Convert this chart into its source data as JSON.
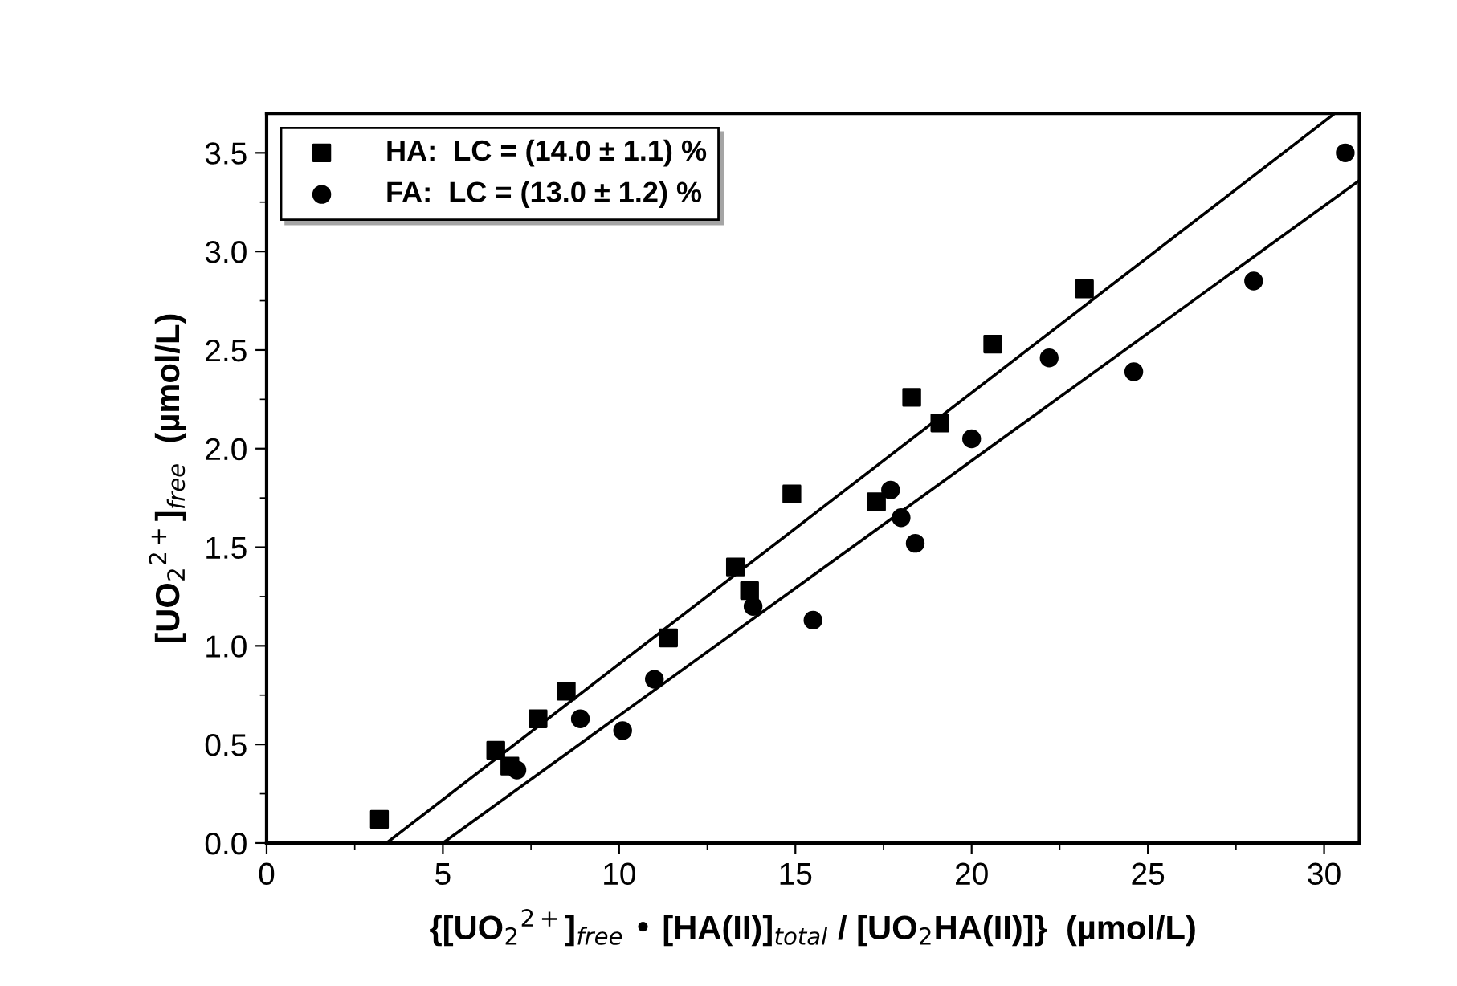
{
  "chart_data": {
    "type": "scatter",
    "xlabel": "{[UO$_{2}$$^{2+}$]$_{free}$ • [HA(II)]$_{total}$ / [UO$_{2}$HA(II)]}  (µmol/L)",
    "ylabel": "[UO$_{2}$$^{2+}$]$_{free}$  (µmol/L)",
    "xlim": [
      0,
      31
    ],
    "ylim": [
      0,
      3.7
    ],
    "xticks": [
      0,
      5,
      10,
      15,
      20,
      25,
      30
    ],
    "yticks": [
      {
        "value": 0,
        "label": "0.0"
      },
      0.5,
      {
        "value": 1,
        "label": "1.0"
      },
      1.5,
      {
        "value": 2,
        "label": "2.0"
      },
      2.5,
      {
        "value": 3,
        "label": "3.0"
      },
      3.5
    ],
    "grid": false,
    "legend": "top left",
    "series": [
      {
        "name": "HA:  LC = (14.0 ± 1.1) %",
        "color": "#000000",
        "marker": "square",
        "x": [
          3.2,
          6.5,
          6.9,
          7.7,
          8.5,
          11.4,
          13.3,
          13.7,
          14.9,
          17.3,
          18.3,
          19.1,
          20.6,
          23.2
        ],
        "values": [
          0.12,
          0.47,
          0.39,
          0.63,
          0.77,
          1.04,
          1.4,
          1.28,
          1.77,
          1.73,
          2.26,
          2.13,
          2.53,
          2.81
        ]
      },
      {
        "name": "FA:  LC = (13.0 ± 1.2) %",
        "color": "#000000",
        "marker": "circle",
        "x": [
          7.1,
          8.9,
          10.1,
          11.0,
          13.8,
          15.5,
          17.7,
          18.0,
          18.4,
          20.0,
          22.2,
          24.6,
          28.0,
          30.6
        ],
        "values": [
          0.37,
          0.63,
          0.57,
          0.83,
          1.2,
          1.13,
          1.79,
          1.65,
          1.52,
          2.05,
          2.46,
          2.39,
          2.85,
          3.5
        ]
      },
      {
        "type": "line",
        "color": "#000000",
        "x": [
          3.4,
          30.3
        ],
        "values": [
          0,
          3.7
        ]
      },
      {
        "type": "line",
        "color": "#000000",
        "x": [
          5.0,
          31.0
        ],
        "values": [
          0,
          3.36
        ]
      }
    ]
  }
}
